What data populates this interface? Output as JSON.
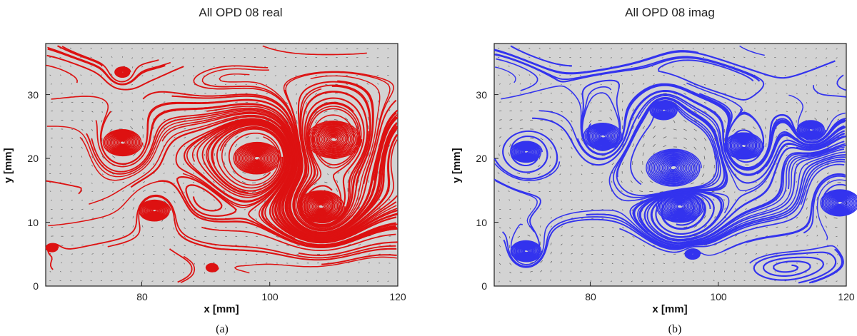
{
  "chart_data": [
    {
      "panel": "a",
      "type": "streamline",
      "title": "All   OPD 08 real",
      "caption": "(a)",
      "xlabel": "x [mm]",
      "ylabel": "y [mm]",
      "xlim": [
        65,
        120
      ],
      "ylim": [
        0,
        38
      ],
      "xticks": [
        80,
        100,
        120
      ],
      "yticks": [
        0,
        10,
        20,
        30
      ],
      "background": "#d3d3d3",
      "line_color": "#dd1111",
      "vortices": [
        {
          "x": 77,
          "y": 22.5,
          "r": 2.5
        },
        {
          "x": 98,
          "y": 20,
          "r": 3
        },
        {
          "x": 110,
          "y": 23,
          "r": 3.5
        },
        {
          "x": 82,
          "y": 11.8,
          "r": 2
        },
        {
          "x": 108,
          "y": 12.5,
          "r": 3
        },
        {
          "x": 77,
          "y": 33.5,
          "r": 1
        },
        {
          "x": 91,
          "y": 2.9,
          "r": 0.8
        },
        {
          "x": 66,
          "y": 6,
          "r": 0.8
        }
      ]
    },
    {
      "panel": "b",
      "type": "streamline",
      "title": "All   OPD 08 imag",
      "caption": "(b)",
      "xlabel": "x [mm]",
      "ylabel": "y [mm]",
      "xlim": [
        65,
        120
      ],
      "ylim": [
        0,
        38
      ],
      "xticks": [
        80,
        100,
        120
      ],
      "yticks": [
        0,
        10,
        20,
        30
      ],
      "background": "#d3d3d3",
      "line_color": "#3333ee",
      "vortices": [
        {
          "x": 82,
          "y": 23.5,
          "r": 2.5
        },
        {
          "x": 93,
          "y": 18.5,
          "r": 3.5
        },
        {
          "x": 104,
          "y": 22,
          "r": 2.5
        },
        {
          "x": 70,
          "y": 21,
          "r": 2
        },
        {
          "x": 114.5,
          "y": 24.5,
          "r": 1.8
        },
        {
          "x": 91.5,
          "y": 27.5,
          "r": 1.8
        },
        {
          "x": 94,
          "y": 12.5,
          "r": 3
        },
        {
          "x": 119,
          "y": 13,
          "r": 2.5
        },
        {
          "x": 70,
          "y": 5.5,
          "r": 2
        },
        {
          "x": 96,
          "y": 5,
          "r": 1
        }
      ]
    }
  ]
}
